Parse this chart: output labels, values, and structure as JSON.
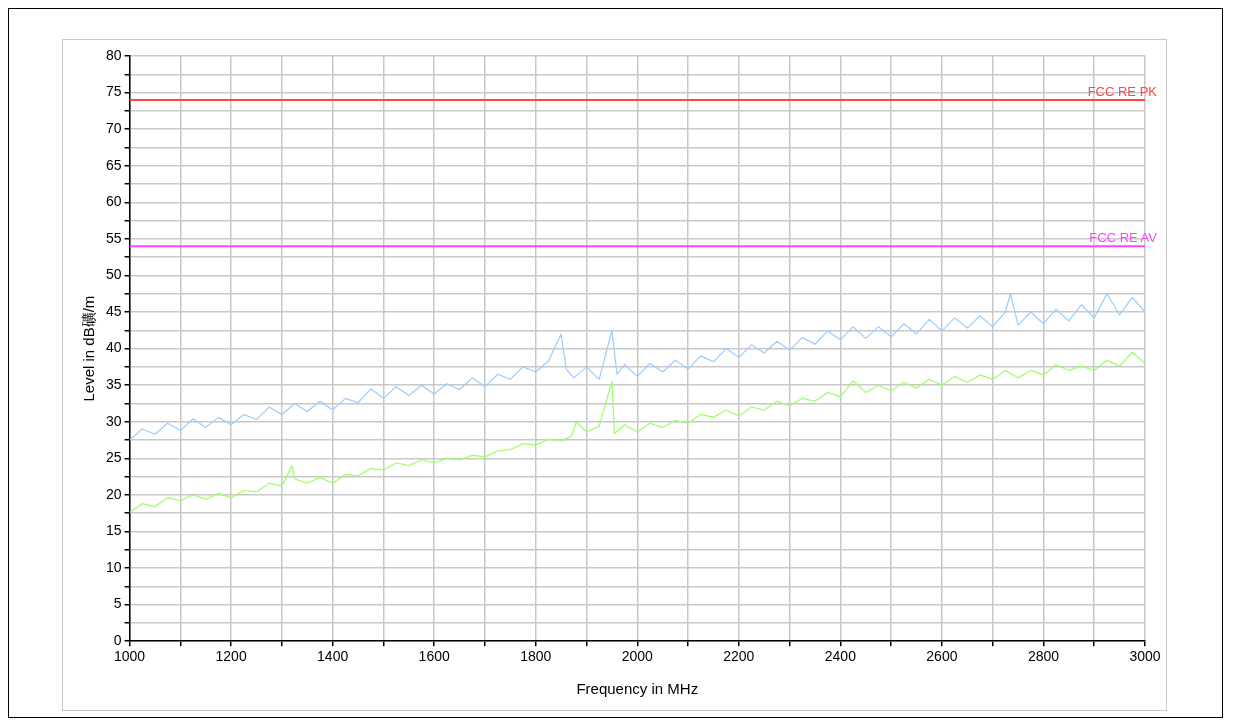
{
  "chart_data": {
    "type": "line",
    "xlabel": "Frequency in MHz",
    "ylabel": "Level in dB礦/m",
    "xlim": [
      1000,
      3000
    ],
    "xticks": [
      1000,
      {
        "value": 1100,
        "label": null
      },
      1200,
      {
        "value": 1300,
        "label": null
      },
      1400,
      {
        "value": 1500,
        "label": null
      },
      1600,
      {
        "value": 1700,
        "label": null
      },
      1800,
      {
        "value": 1900,
        "label": null
      },
      2000,
      {
        "value": 2100,
        "label": null
      },
      2200,
      {
        "value": 2300,
        "label": null
      },
      2400,
      {
        "value": 2500,
        "label": null
      },
      2600,
      {
        "value": 2700,
        "label": null
      },
      2800,
      {
        "value": 2900,
        "label": null
      },
      3000
    ],
    "ylim": [
      0,
      80
    ],
    "yticks": [
      0,
      {
        "value": 2.5,
        "label": null
      },
      5,
      {
        "value": 7.5,
        "label": null
      },
      10,
      {
        "value": 12.5,
        "label": null
      },
      15,
      {
        "value": 17.5,
        "label": null
      },
      20,
      {
        "value": 22.5,
        "label": null
      },
      25,
      {
        "value": 27.5,
        "label": null
      },
      30,
      {
        "value": 32.5,
        "label": null
      },
      35,
      {
        "value": 37.5,
        "label": null
      },
      40,
      {
        "value": 42.5,
        "label": null
      },
      45,
      {
        "value": 47.5,
        "label": null
      },
      50,
      {
        "value": 52.5,
        "label": null
      },
      55,
      {
        "value": 57.5,
        "label": null
      },
      60,
      {
        "value": 62.5,
        "label": null
      },
      65,
      {
        "value": 67.5,
        "label": null
      },
      70,
      {
        "value": 72.5,
        "label": null
      },
      75,
      {
        "value": 77.5,
        "label": null
      },
      80
    ],
    "grid": true,
    "marker": "none",
    "line_style": "solid",
    "series": [
      {
        "color": "#99ccff",
        "x": [
          1000,
          1025,
          1050,
          1075,
          1100,
          1125,
          1150,
          1175,
          1200,
          1225,
          1250,
          1275,
          1300,
          1325,
          1350,
          1375,
          1400,
          1425,
          1450,
          1475,
          1500,
          1525,
          1550,
          1575,
          1600,
          1625,
          1650,
          1675,
          1700,
          1725,
          1750,
          1775,
          1800,
          1825,
          1850,
          1860,
          1875,
          1900,
          1925,
          1950,
          1960,
          1975,
          2000,
          2025,
          2050,
          2075,
          2100,
          2125,
          2150,
          2175,
          2200,
          2225,
          2250,
          2275,
          2300,
          2325,
          2350,
          2375,
          2400,
          2425,
          2450,
          2475,
          2500,
          2525,
          2550,
          2575,
          2600,
          2625,
          2650,
          2675,
          2700,
          2725,
          2735,
          2750,
          2775,
          2800,
          2825,
          2850,
          2875,
          2900,
          2925,
          2950,
          2975,
          3000
        ],
        "values": [
          27.5,
          29,
          28.3,
          29.8,
          28.8,
          30.4,
          29.2,
          30.6,
          29.6,
          31,
          30.3,
          32,
          31,
          32.5,
          31.4,
          32.8,
          31.6,
          33.2,
          32.6,
          34.5,
          33.2,
          34.8,
          33.6,
          35,
          33.8,
          35.2,
          34.4,
          36,
          34.8,
          36.5,
          35.8,
          37.5,
          36.8,
          38.3,
          42,
          37.2,
          36,
          37.5,
          35.8,
          42.5,
          36.5,
          37.8,
          36.2,
          38,
          36.8,
          38.4,
          37.2,
          39,
          38.2,
          40,
          38.8,
          40.5,
          39.4,
          41,
          39.8,
          41.5,
          40.6,
          42.4,
          41.2,
          43,
          41.4,
          43,
          41.6,
          43.4,
          42,
          44,
          42.4,
          44.2,
          42.8,
          44.5,
          43,
          45,
          47.5,
          43.2,
          45,
          43.4,
          45.4,
          43.8,
          46,
          44.2,
          47.5,
          44.6,
          47,
          45
        ]
      },
      {
        "color": "#99ff66",
        "x": [
          1000,
          1025,
          1050,
          1075,
          1100,
          1125,
          1150,
          1175,
          1200,
          1225,
          1250,
          1275,
          1300,
          1320,
          1325,
          1350,
          1375,
          1400,
          1425,
          1450,
          1475,
          1500,
          1525,
          1550,
          1575,
          1600,
          1625,
          1650,
          1675,
          1700,
          1725,
          1750,
          1775,
          1800,
          1825,
          1850,
          1870,
          1880,
          1900,
          1925,
          1950,
          1955,
          1975,
          2000,
          2025,
          2050,
          2075,
          2100,
          2125,
          2150,
          2175,
          2200,
          2225,
          2250,
          2275,
          2300,
          2325,
          2350,
          2375,
          2400,
          2425,
          2450,
          2475,
          2500,
          2525,
          2550,
          2575,
          2600,
          2625,
          2650,
          2675,
          2700,
          2725,
          2750,
          2775,
          2800,
          2825,
          2850,
          2875,
          2900,
          2925,
          2950,
          2975,
          3000
        ],
        "values": [
          17.6,
          18.8,
          18.4,
          19.6,
          19.2,
          20,
          19.4,
          20.2,
          19.6,
          20.6,
          20.4,
          21.6,
          21.2,
          24,
          22.2,
          21.6,
          22.4,
          21.6,
          22.8,
          22.6,
          23.6,
          23.4,
          24.4,
          24,
          24.8,
          24.4,
          25,
          24.8,
          25.4,
          25.2,
          26,
          26.2,
          27,
          26.8,
          27.6,
          27.4,
          28,
          30,
          28.6,
          29.4,
          35.5,
          28.4,
          29.6,
          28.6,
          29.8,
          29.2,
          30.2,
          29.8,
          31,
          30.6,
          31.6,
          30.8,
          32,
          31.6,
          32.8,
          32.2,
          33.2,
          32.8,
          34,
          33.4,
          35.6,
          34,
          35,
          34.2,
          35.4,
          34.6,
          35.8,
          35,
          36.2,
          35.4,
          36.4,
          35.8,
          37,
          36,
          37,
          36.4,
          37.8,
          37,
          37.6,
          37,
          38.4,
          37.6,
          39.5,
          38
        ]
      }
    ],
    "ref_lines": [
      {
        "axis": "y",
        "value": 74,
        "label": "FCC RE PK",
        "color": "#ff4444"
      },
      {
        "axis": "y",
        "value": 54,
        "label": "FCC RE AV",
        "color": "#ff44ff"
      }
    ]
  }
}
